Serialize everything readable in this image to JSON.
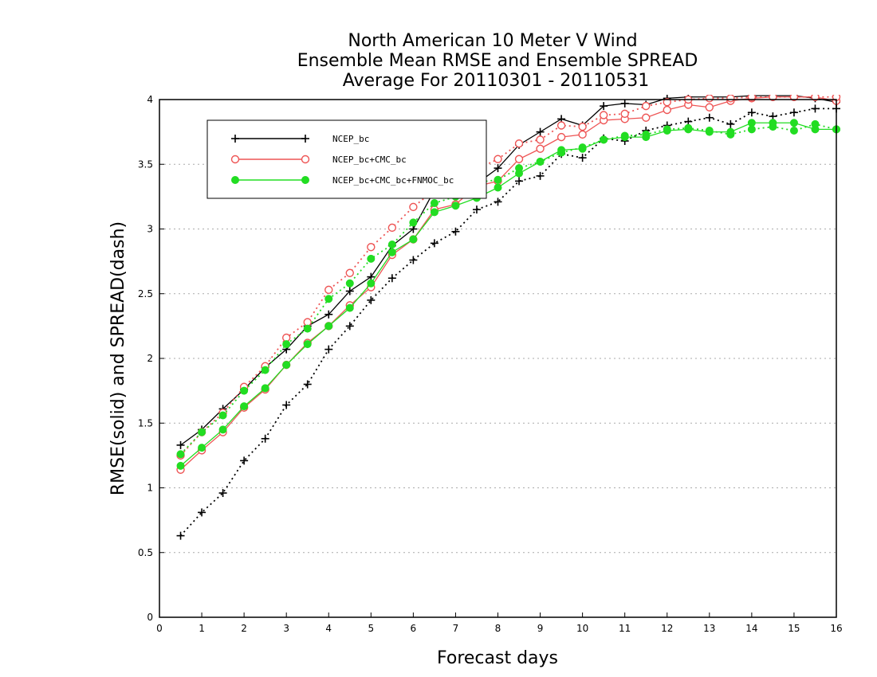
{
  "chart_data": {
    "type": "line",
    "title": [
      "North American 10 Meter V Wind",
      "Ensemble Mean RMSE and Ensemble SPREAD",
      "Average For 20110301 - 20110531"
    ],
    "xlabel": "Forecast days",
    "ylabel": "RMSE(solid) and SPREAD(dash)",
    "xlim": [
      0,
      16
    ],
    "ylim": [
      0,
      4
    ],
    "xticks": [
      "0",
      "1",
      "2",
      "3",
      "4",
      "5",
      "6",
      "7",
      "8",
      "9",
      "10",
      "11",
      "12",
      "13",
      "14",
      "15",
      "16"
    ],
    "yticks": [
      "0",
      "0.5",
      "1",
      "1.5",
      "2",
      "2.5",
      "3",
      "3.5",
      "4"
    ],
    "grid": "horizontal dotted",
    "legend_position": "top-left",
    "x": [
      0.5,
      1,
      1.5,
      2,
      2.5,
      3,
      3.5,
      4,
      4.5,
      5,
      5.5,
      6,
      6.5,
      7,
      7.5,
      8,
      8.5,
      9,
      9.5,
      10,
      10.5,
      11,
      11.5,
      12,
      12.5,
      13,
      13.5,
      14,
      14.5,
      15,
      15.5,
      16
    ],
    "series": [
      {
        "name": "NCEP_bc",
        "color": "#000000",
        "marker": "plus",
        "style": "solid",
        "values": [
          1.33,
          1.45,
          1.61,
          1.76,
          1.93,
          2.07,
          2.25,
          2.34,
          2.52,
          2.63,
          2.87,
          3.0,
          3.3,
          3.3,
          3.35,
          3.47,
          3.65,
          3.75,
          3.85,
          3.8,
          3.95,
          3.97,
          3.96,
          4.01,
          4.02,
          4.02,
          4.02,
          4.03,
          4.03,
          4.03,
          4.01,
          3.98
        ]
      },
      {
        "name": "NCEP_bc",
        "color": "#000000",
        "marker": "plus",
        "style": "dotted",
        "values": [
          0.63,
          0.81,
          0.96,
          1.21,
          1.38,
          1.64,
          1.8,
          2.07,
          2.25,
          2.45,
          2.62,
          2.76,
          2.89,
          2.98,
          3.15,
          3.21,
          3.37,
          3.41,
          3.58,
          3.55,
          3.7,
          3.68,
          3.76,
          3.8,
          3.83,
          3.86,
          3.81,
          3.9,
          3.87,
          3.9,
          3.93,
          3.93
        ]
      },
      {
        "name": "NCEP_bc+CMC_bc",
        "color": "#ee5555",
        "marker": "circle",
        "style": "solid",
        "values": [
          1.14,
          1.29,
          1.43,
          1.62,
          1.76,
          1.95,
          2.12,
          2.25,
          2.41,
          2.55,
          2.8,
          2.92,
          3.15,
          3.19,
          3.33,
          3.37,
          3.54,
          3.62,
          3.71,
          3.73,
          3.84,
          3.85,
          3.86,
          3.92,
          3.96,
          3.94,
          3.99,
          4.01,
          4.02,
          4.02,
          4.02,
          3.99
        ]
      },
      {
        "name": "NCEP_bc+CMC_bc",
        "color": "#ee5555",
        "marker": "circle",
        "style": "dotted",
        "values": [
          1.25,
          1.43,
          1.58,
          1.78,
          1.94,
          2.16,
          2.28,
          2.53,
          2.66,
          2.86,
          3.01,
          3.17,
          3.3,
          3.36,
          3.46,
          3.54,
          3.66,
          3.69,
          3.8,
          3.79,
          3.88,
          3.89,
          3.95,
          3.98,
          4.0,
          4.01,
          4.01,
          4.02,
          4.02,
          4.02,
          4.02,
          4.02
        ]
      },
      {
        "name": "NCEP_bc+CMC_bc+FNMOC_bc",
        "color": "#22dd22",
        "marker": "dot",
        "style": "solid",
        "values": [
          1.17,
          1.31,
          1.45,
          1.63,
          1.77,
          1.95,
          2.11,
          2.25,
          2.39,
          2.58,
          2.82,
          2.92,
          3.13,
          3.18,
          3.24,
          3.32,
          3.43,
          3.52,
          3.61,
          3.62,
          3.69,
          3.71,
          3.71,
          3.76,
          3.77,
          3.75,
          3.75,
          3.82,
          3.82,
          3.82,
          3.77,
          3.77
        ]
      },
      {
        "name": "NCEP_bc+CMC_bc+FNMOC_bc",
        "color": "#22dd22",
        "marker": "dot",
        "style": "dotted",
        "values": [
          1.26,
          1.43,
          1.56,
          1.75,
          1.91,
          2.11,
          2.23,
          2.46,
          2.58,
          2.77,
          2.88,
          3.05,
          3.2,
          3.25,
          3.36,
          3.38,
          3.47,
          3.52,
          3.59,
          3.63,
          3.69,
          3.72,
          3.73,
          3.77,
          3.78,
          3.76,
          3.73,
          3.77,
          3.79,
          3.76,
          3.81,
          3.77
        ]
      }
    ],
    "legend": [
      {
        "label": "NCEP_bc",
        "color": "#000000",
        "marker": "plus"
      },
      {
        "label": "NCEP_bc+CMC_bc",
        "color": "#ee5555",
        "marker": "circle"
      },
      {
        "label": "NCEP_bc+CMC_bc+FNMOC_bc",
        "color": "#22dd22",
        "marker": "dot"
      }
    ]
  }
}
